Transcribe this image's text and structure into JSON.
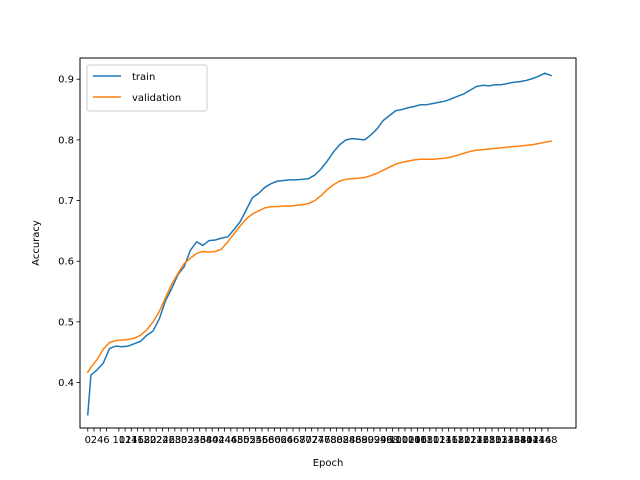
{
  "chart_data": {
    "type": "line",
    "xlabel": "Epoch",
    "ylabel": "Accuracy",
    "legend": {
      "position": "upper-left"
    },
    "grid": false,
    "xlim": [
      -2.5,
      157
    ],
    "ylim": [
      0.325,
      0.935
    ],
    "xticks": [
      0,
      2,
      4,
      6,
      10,
      12,
      14,
      16,
      18,
      20,
      22,
      24,
      26,
      28,
      30,
      32,
      34,
      36,
      38,
      40,
      42,
      44,
      46,
      48,
      50,
      52,
      54,
      56,
      58,
      60,
      62,
      64,
      66,
      68,
      70,
      72,
      74,
      76,
      78,
      80,
      82,
      84,
      86,
      88,
      90,
      92,
      94,
      96,
      98,
      100,
      102,
      104,
      106,
      108,
      110,
      112,
      114,
      116,
      118,
      120,
      122,
      124,
      126,
      128,
      130,
      132,
      134,
      136,
      138,
      140,
      142,
      144,
      146,
      148
    ],
    "yticks": [
      0.4,
      0.5,
      0.6,
      0.7,
      0.8,
      0.9
    ],
    "ytick_labels": [
      "0.4",
      "0.5",
      "0.6",
      "0.7",
      "0.8",
      "0.9"
    ],
    "series": [
      {
        "name": "train",
        "color": "#1f77b4",
        "points": [
          [
            0,
            0.347
          ],
          [
            1,
            0.412
          ],
          [
            3,
            0.421
          ],
          [
            5,
            0.432
          ],
          [
            7,
            0.456
          ],
          [
            9,
            0.46
          ],
          [
            11,
            0.459
          ],
          [
            13,
            0.46
          ],
          [
            15,
            0.464
          ],
          [
            17,
            0.468
          ],
          [
            19,
            0.478
          ],
          [
            21,
            0.485
          ],
          [
            23,
            0.505
          ],
          [
            25,
            0.535
          ],
          [
            27,
            0.555
          ],
          [
            29,
            0.578
          ],
          [
            31,
            0.591
          ],
          [
            33,
            0.618
          ],
          [
            35,
            0.632
          ],
          [
            37,
            0.626
          ],
          [
            39,
            0.634
          ],
          [
            41,
            0.635
          ],
          [
            43,
            0.638
          ],
          [
            45,
            0.64
          ],
          [
            47,
            0.652
          ],
          [
            49,
            0.665
          ],
          [
            51,
            0.685
          ],
          [
            53,
            0.705
          ],
          [
            55,
            0.712
          ],
          [
            57,
            0.722
          ],
          [
            59,
            0.728
          ],
          [
            61,
            0.732
          ],
          [
            63,
            0.733
          ],
          [
            65,
            0.734
          ],
          [
            67,
            0.734
          ],
          [
            69,
            0.735
          ],
          [
            71,
            0.736
          ],
          [
            73,
            0.742
          ],
          [
            75,
            0.752
          ],
          [
            77,
            0.765
          ],
          [
            79,
            0.78
          ],
          [
            81,
            0.792
          ],
          [
            83,
            0.8
          ],
          [
            85,
            0.802
          ],
          [
            87,
            0.801
          ],
          [
            89,
            0.8
          ],
          [
            91,
            0.808
          ],
          [
            93,
            0.818
          ],
          [
            95,
            0.832
          ],
          [
            97,
            0.84
          ],
          [
            99,
            0.848
          ],
          [
            101,
            0.85
          ],
          [
            103,
            0.853
          ],
          [
            105,
            0.855
          ],
          [
            107,
            0.858
          ],
          [
            109,
            0.858
          ],
          [
            111,
            0.86
          ],
          [
            113,
            0.862
          ],
          [
            115,
            0.864
          ],
          [
            117,
            0.868
          ],
          [
            119,
            0.872
          ],
          [
            121,
            0.876
          ],
          [
            123,
            0.882
          ],
          [
            125,
            0.888
          ],
          [
            127,
            0.89
          ],
          [
            129,
            0.889
          ],
          [
            131,
            0.891
          ],
          [
            133,
            0.891
          ],
          [
            135,
            0.893
          ],
          [
            137,
            0.895
          ],
          [
            139,
            0.896
          ],
          [
            141,
            0.898
          ],
          [
            143,
            0.901
          ],
          [
            145,
            0.905
          ],
          [
            147,
            0.91
          ],
          [
            149,
            0.906
          ]
        ]
      },
      {
        "name": "validation",
        "color": "#ff7f0e",
        "points": [
          [
            0,
            0.417
          ],
          [
            1,
            0.425
          ],
          [
            3,
            0.438
          ],
          [
            5,
            0.455
          ],
          [
            7,
            0.466
          ],
          [
            9,
            0.469
          ],
          [
            11,
            0.47
          ],
          [
            13,
            0.471
          ],
          [
            15,
            0.473
          ],
          [
            17,
            0.478
          ],
          [
            19,
            0.487
          ],
          [
            21,
            0.5
          ],
          [
            23,
            0.517
          ],
          [
            25,
            0.54
          ],
          [
            27,
            0.562
          ],
          [
            29,
            0.58
          ],
          [
            31,
            0.596
          ],
          [
            33,
            0.605
          ],
          [
            35,
            0.613
          ],
          [
            37,
            0.616
          ],
          [
            39,
            0.615
          ],
          [
            41,
            0.616
          ],
          [
            43,
            0.62
          ],
          [
            45,
            0.632
          ],
          [
            47,
            0.645
          ],
          [
            49,
            0.658
          ],
          [
            51,
            0.67
          ],
          [
            53,
            0.678
          ],
          [
            55,
            0.683
          ],
          [
            57,
            0.688
          ],
          [
            59,
            0.69
          ],
          [
            61,
            0.69
          ],
          [
            63,
            0.691
          ],
          [
            65,
            0.691
          ],
          [
            67,
            0.692
          ],
          [
            69,
            0.693
          ],
          [
            71,
            0.695
          ],
          [
            73,
            0.7
          ],
          [
            75,
            0.708
          ],
          [
            77,
            0.718
          ],
          [
            79,
            0.726
          ],
          [
            81,
            0.732
          ],
          [
            83,
            0.735
          ],
          [
            85,
            0.736
          ],
          [
            87,
            0.737
          ],
          [
            89,
            0.738
          ],
          [
            91,
            0.741
          ],
          [
            93,
            0.745
          ],
          [
            95,
            0.75
          ],
          [
            97,
            0.755
          ],
          [
            99,
            0.76
          ],
          [
            101,
            0.763
          ],
          [
            103,
            0.765
          ],
          [
            105,
            0.767
          ],
          [
            107,
            0.768
          ],
          [
            109,
            0.768
          ],
          [
            111,
            0.768
          ],
          [
            113,
            0.769
          ],
          [
            115,
            0.77
          ],
          [
            117,
            0.772
          ],
          [
            119,
            0.775
          ],
          [
            121,
            0.778
          ],
          [
            123,
            0.781
          ],
          [
            125,
            0.783
          ],
          [
            127,
            0.784
          ],
          [
            129,
            0.785
          ],
          [
            131,
            0.786
          ],
          [
            133,
            0.787
          ],
          [
            135,
            0.788
          ],
          [
            137,
            0.789
          ],
          [
            139,
            0.79
          ],
          [
            141,
            0.791
          ],
          [
            143,
            0.792
          ],
          [
            145,
            0.794
          ],
          [
            147,
            0.796
          ],
          [
            149,
            0.798
          ]
        ]
      }
    ]
  }
}
